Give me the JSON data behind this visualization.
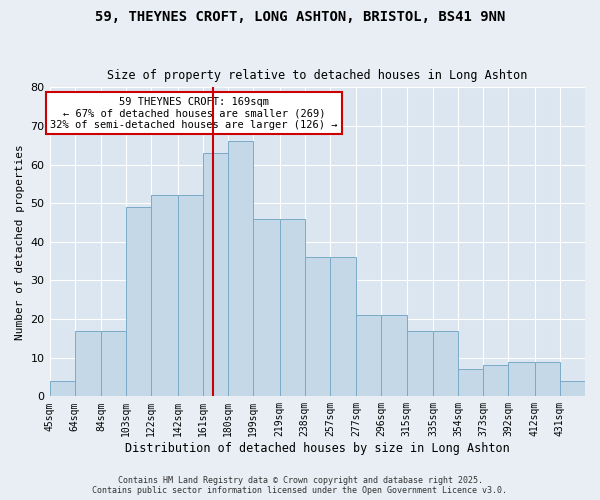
{
  "title_line1": "59, THEYNES CROFT, LONG ASHTON, BRISTOL, BS41 9NN",
  "title_line2": "Size of property relative to detached houses in Long Ashton",
  "xlabel": "Distribution of detached houses by size in Long Ashton",
  "ylabel": "Number of detached properties",
  "bin_labels": [
    "45sqm",
    "64sqm",
    "84sqm",
    "103sqm",
    "122sqm",
    "142sqm",
    "161sqm",
    "180sqm",
    "199sqm",
    "219sqm",
    "238sqm",
    "257sqm",
    "277sqm",
    "296sqm",
    "315sqm",
    "335sqm",
    "354sqm",
    "373sqm",
    "392sqm",
    "412sqm",
    "431sqm"
  ],
  "bin_edges": [
    45,
    64,
    84,
    103,
    122,
    142,
    161,
    180,
    199,
    219,
    238,
    257,
    277,
    296,
    315,
    335,
    354,
    373,
    392,
    412,
    431
  ],
  "values": [
    4,
    17,
    17,
    49,
    52,
    52,
    63,
    66,
    46,
    46,
    36,
    36,
    21,
    21,
    17,
    17,
    7,
    8,
    9,
    9,
    4
  ],
  "bar_color": "#c5d8e8",
  "bar_edge_color": "#7aaac8",
  "vline_x": 169,
  "vline_color": "#cc0000",
  "annotation_title": "59 THEYNES CROFT: 169sqm",
  "annotation_line2": "← 67% of detached houses are smaller (269)",
  "annotation_line3": "32% of semi-detached houses are larger (126) →",
  "annotation_box_color": "#ffffff",
  "annotation_border_color": "#cc0000",
  "ylim": [
    0,
    80
  ],
  "yticks": [
    0,
    10,
    20,
    30,
    40,
    50,
    60,
    70,
    80
  ],
  "bg_color": "#e8eef4",
  "plot_bg_color": "#dce6f0",
  "footer_line1": "Contains HM Land Registry data © Crown copyright and database right 2025.",
  "footer_line2": "Contains public sector information licensed under the Open Government Licence v3.0."
}
